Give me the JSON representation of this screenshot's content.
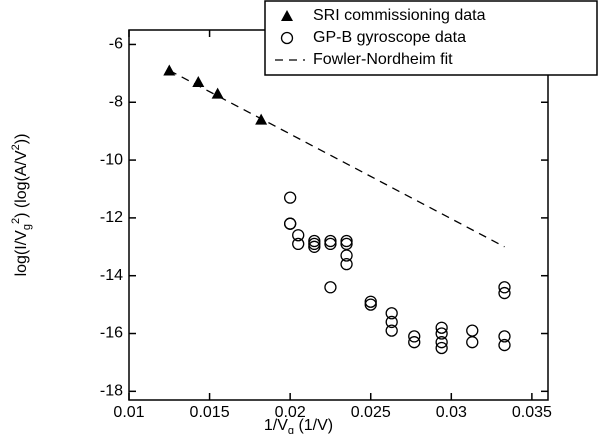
{
  "chart_data": {
    "type": "scatter",
    "x_label": [
      "1/V",
      "g",
      " (1/V)"
    ],
    "y_label": [
      "log(I/V",
      "g",
      "2",
      ") (log(A/V",
      "2",
      "))"
    ],
    "xlim": [
      0.01,
      0.036
    ],
    "ylim": [
      -18.3,
      -5.5
    ],
    "xticks": [
      0.01,
      0.015,
      0.02,
      0.025,
      0.03,
      0.035
    ],
    "yticks": [
      -18,
      -16,
      -14,
      -12,
      -10,
      -8,
      -6
    ],
    "legend": "top-right",
    "series": [
      {
        "name": "SRI commissioning data",
        "type": "scatter",
        "marker": "triangle",
        "color": "#000000",
        "x": [
          0.0125,
          0.0143,
          0.0155,
          0.0182
        ],
        "values": [
          -6.9,
          -7.3,
          -7.7,
          -8.6
        ]
      },
      {
        "name": "GP-B gyroscope data",
        "type": "scatter",
        "marker": "circle",
        "color": "#000000",
        "x": [
          0.02,
          0.02,
          0.02,
          0.0205,
          0.0205,
          0.0215,
          0.0215,
          0.0215,
          0.0225,
          0.0225,
          0.0225,
          0.0235,
          0.0235,
          0.0235,
          0.0235,
          0.025,
          0.025,
          0.0263,
          0.0263,
          0.0263,
          0.0277,
          0.0277,
          0.0294,
          0.0294,
          0.0294,
          0.0294,
          0.0313,
          0.0313,
          0.0333,
          0.0333,
          0.0333,
          0.0333
        ],
        "values": [
          -11.3,
          -12.2,
          -12.2,
          -12.6,
          -12.9,
          -12.9,
          -12.8,
          -13.0,
          -12.8,
          -12.9,
          -14.4,
          -12.9,
          -13.3,
          -13.6,
          -12.8,
          -14.9,
          -15.0,
          -15.3,
          -15.6,
          -15.9,
          -16.1,
          -16.3,
          -15.8,
          -16.0,
          -16.3,
          -16.5,
          -15.9,
          -16.3,
          -14.4,
          -14.6,
          -16.1,
          -16.4
        ]
      },
      {
        "name": "Fowler-Nordheim fit",
        "type": "line",
        "dash": true,
        "color": "#000000",
        "x": [
          0.0125,
          0.0333
        ],
        "values": [
          -6.9,
          -13.0
        ]
      }
    ]
  }
}
